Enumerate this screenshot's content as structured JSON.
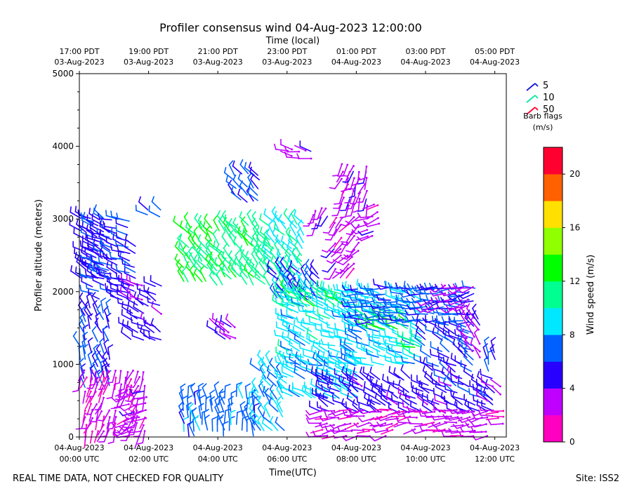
{
  "chart_data": {
    "type": "wind-barb-time-height",
    "title": "Profiler consensus wind 04-Aug-2023 12:00:00",
    "top_axis_title": "Time (local)",
    "xlabel": "Time(UTC)",
    "ylabel": "Profiler altitude (meters)",
    "xlim_hours_utc": [
      0,
      12.33
    ],
    "ylim": [
      0,
      5000
    ],
    "y_ticks": [
      0,
      1000,
      2000,
      3000,
      4000,
      5000
    ],
    "x_ticks": [
      {
        "hour": 0,
        "date": "04-Aug-2023",
        "time": "00:00 UTC"
      },
      {
        "hour": 2,
        "date": "04-Aug-2023",
        "time": "02:00 UTC"
      },
      {
        "hour": 4,
        "date": "04-Aug-2023",
        "time": "04:00 UTC"
      },
      {
        "hour": 6,
        "date": "04-Aug-2023",
        "time": "06:00 UTC"
      },
      {
        "hour": 8,
        "date": "04-Aug-2023",
        "time": "08:00 UTC"
      },
      {
        "hour": 10,
        "date": "04-Aug-2023",
        "time": "10:00 UTC"
      },
      {
        "hour": 12,
        "date": "04-Aug-2023",
        "time": "12:00 UTC"
      }
    ],
    "top_ticks": [
      {
        "hour": 0,
        "time": "17:00 PDT",
        "date": "03-Aug-2023"
      },
      {
        "hour": 2,
        "time": "19:00 PDT",
        "date": "03-Aug-2023"
      },
      {
        "hour": 4,
        "time": "21:00 PDT",
        "date": "03-Aug-2023"
      },
      {
        "hour": 6,
        "time": "23:00 PDT",
        "date": "03-Aug-2023"
      },
      {
        "hour": 8,
        "time": "01:00 PDT",
        "date": "04-Aug-2023"
      },
      {
        "hour": 10,
        "time": "03:00 PDT",
        "date": "04-Aug-2023"
      },
      {
        "hour": 12,
        "time": "05:00 PDT",
        "date": "04-Aug-2023"
      }
    ],
    "legend": {
      "entries": [
        {
          "label": "5",
          "color": "#1010e0"
        },
        {
          "label": "10",
          "color": "#00e8a0"
        },
        {
          "label": "50",
          "color": "#ff0030"
        }
      ],
      "caption": "Barb flags",
      "units": "(m/s)"
    },
    "colorbar": {
      "label": "Wind speed (m/s)",
      "range": [
        0,
        22
      ],
      "tick_values": [
        0,
        4,
        8,
        12,
        16,
        20
      ],
      "tick_labels": [
        "0",
        "4",
        "8",
        "12",
        "16",
        "20"
      ],
      "colors": [
        "#ff00c0",
        "#c000ff",
        "#2800ff",
        "#0060ff",
        "#00e8ff",
        "#00ff90",
        "#00ff00",
        "#90ff00",
        "#ffe000",
        "#ff6000",
        "#ff0030"
      ]
    },
    "wind_clusters": [
      {
        "h0": 0.0,
        "h1": 0.9,
        "z0": 2200,
        "z1": 3050,
        "spd": 5.5,
        "dir": 300
      },
      {
        "h0": 0.4,
        "h1": 1.6,
        "z0": 1900,
        "z1": 3000,
        "spd": 5.5,
        "dir": 290
      },
      {
        "h0": 1.5,
        "h1": 2.5,
        "z0": 1350,
        "z1": 2100,
        "spd": 4.8,
        "dir": 300
      },
      {
        "h0": 2.0,
        "h1": 2.5,
        "z0": 3050,
        "z1": 3150,
        "spd": 6.5,
        "dir": 300
      },
      {
        "h0": 0.0,
        "h1": 0.9,
        "z0": 700,
        "z1": 1800,
        "spd": 6.0,
        "dir": 340
      },
      {
        "h0": 0.0,
        "h1": 2.0,
        "z0": 0,
        "z1": 950,
        "spd": 2.5,
        "dir": 200
      },
      {
        "h0": 1.4,
        "h1": 2.0,
        "z0": 0,
        "z1": 700,
        "spd": 3.0,
        "dir": 250
      },
      {
        "h0": 3.0,
        "h1": 5.2,
        "z0": 0,
        "z1": 550,
        "spd": 7.0,
        "dir": 350
      },
      {
        "h0": 5.2,
        "h1": 6.0,
        "z0": 0,
        "z1": 1050,
        "spd": 8.0,
        "dir": 320
      },
      {
        "h0": 3.0,
        "h1": 4.0,
        "z0": 2150,
        "z1": 2950,
        "spd": 12.0,
        "dir": 320
      },
      {
        "h0": 4.0,
        "h1": 5.6,
        "z0": 2100,
        "z1": 2950,
        "spd": 11.5,
        "dir": 320
      },
      {
        "h0": 5.6,
        "h1": 6.6,
        "z0": 2050,
        "z1": 2950,
        "spd": 10.0,
        "dir": 320
      },
      {
        "h0": 4.5,
        "h1": 5.2,
        "z0": 3250,
        "z1": 3650,
        "spd": 6.0,
        "dir": 320
      },
      {
        "h0": 4.0,
        "h1": 4.6,
        "z0": 1350,
        "z1": 1600,
        "spd": 3.5,
        "dir": 300
      },
      {
        "h0": 5.7,
        "h1": 6.9,
        "z0": 1900,
        "z1": 2300,
        "spd": 6.0,
        "dir": 320
      },
      {
        "h0": 6.0,
        "h1": 8.2,
        "z0": 1000,
        "z1": 2050,
        "spd": 9.0,
        "dir": 290
      },
      {
        "h0": 6.0,
        "h1": 8.2,
        "z0": 550,
        "z1": 1000,
        "spd": 8.5,
        "dir": 300
      },
      {
        "h0": 5.9,
        "h1": 7.6,
        "z0": 1800,
        "z1": 2000,
        "spd": 11.5,
        "dir": 300
      },
      {
        "h0": 7.8,
        "h1": 10.0,
        "z0": 1000,
        "z1": 2000,
        "spd": 8.5,
        "dir": 290
      },
      {
        "h0": 8.3,
        "h1": 9.5,
        "z0": 1500,
        "z1": 1700,
        "spd": 12.5,
        "dir": 290
      },
      {
        "h0": 9.5,
        "h1": 10.0,
        "z0": 1150,
        "z1": 1400,
        "spd": 12.0,
        "dir": 290
      },
      {
        "h0": 8.0,
        "h1": 11.5,
        "z0": 1600,
        "z1": 2100,
        "spd": 6.5,
        "dir": 270
      },
      {
        "h0": 10.0,
        "h1": 11.5,
        "z0": 900,
        "z1": 1600,
        "spd": 6.0,
        "dir": 300
      },
      {
        "h0": 7.0,
        "h1": 12.0,
        "z0": 350,
        "z1": 800,
        "spd": 5.0,
        "dir": 300
      },
      {
        "h0": 7.0,
        "h1": 12.3,
        "z0": 0,
        "z1": 400,
        "spd": 2.5,
        "dir": 260
      },
      {
        "h0": 10.2,
        "h1": 11.4,
        "z0": 1800,
        "z1": 2150,
        "spd": 3.5,
        "dir": 250
      },
      {
        "h0": 11.2,
        "h1": 11.6,
        "z0": 1100,
        "z1": 1700,
        "spd": 3.5,
        "dir": 320
      },
      {
        "h0": 11.8,
        "h1": 12.1,
        "z0": 900,
        "z1": 1200,
        "spd": 6.0,
        "dir": 350
      },
      {
        "h0": 11.8,
        "h1": 12.3,
        "z0": 500,
        "z1": 700,
        "spd": 3.5,
        "dir": 300
      },
      {
        "h0": 7.4,
        "h1": 8.1,
        "z0": 2300,
        "z1": 3100,
        "spd": 3.0,
        "dir": 220
      },
      {
        "h0": 7.6,
        "h1": 8.4,
        "z0": 3200,
        "z1": 3750,
        "spd": 3.0,
        "dir": 200
      },
      {
        "h0": 8.3,
        "h1": 8.8,
        "z0": 2750,
        "z1": 3250,
        "spd": 3.0,
        "dir": 250
      },
      {
        "h0": 6.0,
        "h1": 6.9,
        "z0": 3850,
        "z1": 4000,
        "spd": 3.0,
        "dir": 280
      },
      {
        "h0": 6.8,
        "h1": 7.2,
        "z0": 2950,
        "z1": 3200,
        "spd": 3.5,
        "dir": 200
      }
    ],
    "footer_left": "REAL TIME DATA, NOT CHECKED FOR QUALITY",
    "footer_right": "Site: ISS2"
  }
}
